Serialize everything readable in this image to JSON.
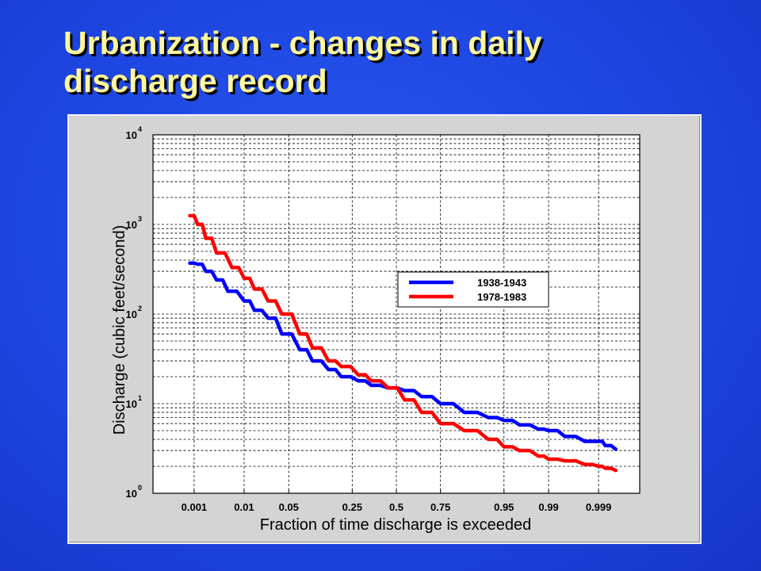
{
  "slide": {
    "title_lines": [
      "Urbanization - changes in daily",
      "discharge record"
    ]
  },
  "colors": {
    "background": "#1d45df",
    "title": "#fff79a",
    "panel": "#d4d4d4",
    "series_1938": "#0000ff",
    "series_1978": "#ff0000"
  },
  "chart_data": {
    "type": "line",
    "xlabel": "Fraction of time discharge is exceeded",
    "ylabel": "Discharge (cubic feet/second)",
    "xscale": "normal-probability",
    "yscale": "log",
    "ylim": [
      1,
      10000
    ],
    "grid": true,
    "legend_position": "center-right",
    "x_ticks": [
      {
        "value": 0.001,
        "label": "0.001"
      },
      {
        "value": 0.01,
        "label": "0.01"
      },
      {
        "value": 0.05,
        "label": "0.05"
      },
      {
        "value": 0.25,
        "label": "0.25"
      },
      {
        "value": 0.5,
        "label": "0.5"
      },
      {
        "value": 0.75,
        "label": "0.75"
      },
      {
        "value": 0.95,
        "label": "0.95"
      },
      {
        "value": 0.99,
        "label": "0.99"
      },
      {
        "value": 0.999,
        "label": "0.999"
      }
    ],
    "y_ticks": [
      {
        "value": 1,
        "base": "10",
        "exp": "0"
      },
      {
        "value": 10,
        "base": "10",
        "exp": "1"
      },
      {
        "value": 100,
        "base": "10",
        "exp": "2"
      },
      {
        "value": 1000,
        "base": "10",
        "exp": "3"
      },
      {
        "value": 10000,
        "base": "10",
        "exp": "4"
      }
    ],
    "series": [
      {
        "name": "1938-1943",
        "color": "#0000ff",
        "points": [
          [
            0.0008,
            370
          ],
          [
            0.0012,
            360
          ],
          [
            0.0018,
            300
          ],
          [
            0.003,
            240
          ],
          [
            0.005,
            180
          ],
          [
            0.01,
            140
          ],
          [
            0.015,
            110
          ],
          [
            0.025,
            90
          ],
          [
            0.04,
            60
          ],
          [
            0.07,
            40
          ],
          [
            0.1,
            30
          ],
          [
            0.15,
            24
          ],
          [
            0.2,
            20
          ],
          [
            0.28,
            18
          ],
          [
            0.35,
            16
          ],
          [
            0.45,
            15
          ],
          [
            0.55,
            14
          ],
          [
            0.65,
            12
          ],
          [
            0.75,
            10
          ],
          [
            0.85,
            8
          ],
          [
            0.92,
            7
          ],
          [
            0.95,
            6.5
          ],
          [
            0.97,
            5.8
          ],
          [
            0.985,
            5.2
          ],
          [
            0.99,
            5
          ],
          [
            0.995,
            4.3
          ],
          [
            0.998,
            3.8
          ],
          [
            0.999,
            3.8
          ],
          [
            0.9993,
            3.4
          ],
          [
            0.9996,
            3.1
          ]
        ]
      },
      {
        "name": "1978-1983",
        "color": "#ff0000",
        "points": [
          [
            0.0008,
            1250
          ],
          [
            0.0012,
            1000
          ],
          [
            0.0018,
            700
          ],
          [
            0.003,
            480
          ],
          [
            0.006,
            330
          ],
          [
            0.01,
            250
          ],
          [
            0.015,
            190
          ],
          [
            0.025,
            140
          ],
          [
            0.04,
            100
          ],
          [
            0.07,
            60
          ],
          [
            0.1,
            42
          ],
          [
            0.15,
            30
          ],
          [
            0.2,
            26
          ],
          [
            0.28,
            21
          ],
          [
            0.35,
            18
          ],
          [
            0.45,
            15
          ],
          [
            0.55,
            11
          ],
          [
            0.65,
            8
          ],
          [
            0.75,
            6
          ],
          [
            0.85,
            5
          ],
          [
            0.92,
            4
          ],
          [
            0.95,
            3.3
          ],
          [
            0.97,
            3.0
          ],
          [
            0.985,
            2.6
          ],
          [
            0.99,
            2.4
          ],
          [
            0.995,
            2.3
          ],
          [
            0.998,
            2.1
          ],
          [
            0.999,
            2.0
          ],
          [
            0.9993,
            1.9
          ],
          [
            0.9996,
            1.8
          ]
        ]
      }
    ]
  }
}
